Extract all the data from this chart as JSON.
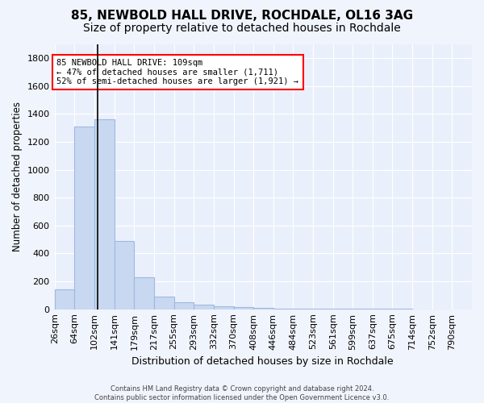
{
  "title": "85, NEWBOLD HALL DRIVE, ROCHDALE, OL16 3AG",
  "subtitle": "Size of property relative to detached houses in Rochdale",
  "xlabel": "Distribution of detached houses by size in Rochdale",
  "ylabel": "Number of detached properties",
  "bar_color": "#c8d8f0",
  "bar_edge_color": "#a0b8e0",
  "background_color": "#eaf0fb",
  "annotation_box_text": "85 NEWBOLD HALL DRIVE: 109sqm\n← 47% of detached houses are smaller (1,711)\n52% of semi-detached houses are larger (1,921) →",
  "vline_x": 109,
  "categories": [
    "26sqm",
    "64sqm",
    "102sqm",
    "141sqm",
    "179sqm",
    "217sqm",
    "255sqm",
    "293sqm",
    "332sqm",
    "370sqm",
    "408sqm",
    "446sqm",
    "484sqm",
    "523sqm",
    "561sqm",
    "599sqm",
    "637sqm",
    "675sqm",
    "714sqm",
    "752sqm",
    "790sqm"
  ],
  "bin_edges": [
    26,
    64,
    102,
    141,
    179,
    217,
    255,
    293,
    332,
    370,
    408,
    446,
    484,
    523,
    561,
    599,
    637,
    675,
    714,
    752,
    790
  ],
  "bar_heights": [
    140,
    1310,
    1360,
    490,
    230,
    90,
    50,
    30,
    20,
    15,
    10,
    5,
    5,
    5,
    3,
    3,
    2,
    2,
    1,
    1
  ],
  "ylim": [
    0,
    1900
  ],
  "yticks": [
    0,
    200,
    400,
    600,
    800,
    1000,
    1200,
    1400,
    1600,
    1800
  ],
  "footnote": "Contains HM Land Registry data © Crown copyright and database right 2024.\nContains public sector information licensed under the Open Government Licence v3.0.",
  "property_sqm": 109,
  "grid_color": "#ffffff",
  "fig_bg_color": "#f0f4fc",
  "title_fontsize": 11,
  "subtitle_fontsize": 10
}
